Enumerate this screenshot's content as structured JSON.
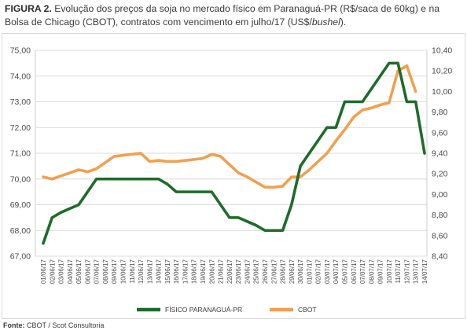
{
  "caption": {
    "label": "FIGURA 2.",
    "text": " Evolução dos preços da soja no mercado físico em Paranaguá-PR (R$/saca de 60kg) e na Bolsa de Chicago (CBOT), contratos com vencimento em julho/17 (US$/",
    "italic": "bushel",
    "end": ")."
  },
  "source": {
    "label": "Fonte:",
    "text": " CBOT / Scot Consultoria"
  },
  "colors": {
    "fisico": "#1e6b2a",
    "cbot": "#f0a050",
    "grid": "#dcdcdc"
  },
  "chart_data": {
    "type": "line",
    "categories": [
      "01/06/17",
      "02/06/17",
      "03/06/17",
      "04/06/17",
      "05/06/17",
      "06/06/17",
      "07/06/17",
      "08/06/17",
      "09/06/17",
      "10/06/17",
      "11/06/17",
      "12/06/17",
      "13/06/17",
      "14/06/17",
      "15/06/17",
      "16/06/17",
      "17/06/17",
      "18/06/17",
      "19/06/17",
      "20/06/17",
      "21/06/17",
      "22/06/17",
      "23/06/17",
      "24/06/17",
      "25/06/17",
      "26/06/17",
      "27/06/17",
      "28/06/17",
      "29/06/17",
      "30/06/17",
      "01/07/17",
      "02/07/17",
      "03/07/17",
      "04/07/17",
      "05/07/17",
      "06/07/17",
      "07/07/17",
      "08/07/17",
      "09/07/17",
      "10/07/17",
      "11/07/17",
      "12/07/17",
      "13/07/17",
      "14/07/17"
    ],
    "y_left": {
      "ylim": [
        67.0,
        75.0
      ],
      "ticks": [
        "67,00",
        "68,00",
        "69,00",
        "70,00",
        "71,00",
        "72,00",
        "73,00",
        "74,00",
        "75,00"
      ]
    },
    "y_right": {
      "ylim": [
        8.4,
        10.4
      ],
      "ticks": [
        "8,40",
        "8,60",
        "8,80",
        "9,00",
        "9,20",
        "9,40",
        "9,60",
        "9,80",
        "10,00",
        "10,20",
        "10,40"
      ]
    },
    "grid": true,
    "legend": "bottom",
    "series": [
      {
        "name": "FÍSICO PARANAGUÁ-PR",
        "axis": "left",
        "values": [
          67.5,
          68.5,
          68.7,
          68.85,
          69.0,
          69.5,
          70.0,
          70.0,
          70.0,
          70.0,
          70.0,
          70.0,
          70.0,
          70.0,
          69.8,
          69.5,
          69.5,
          69.5,
          69.5,
          69.5,
          69.0,
          68.5,
          68.5,
          68.35,
          68.2,
          68.0,
          68.0,
          68.0,
          69.0,
          70.5,
          71.0,
          71.5,
          72.0,
          72.0,
          73.0,
          73.0,
          73.0,
          73.5,
          74.0,
          74.5,
          74.5,
          73.0,
          73.0,
          71.0
        ]
      },
      {
        "name": "CBOT",
        "axis": "right",
        "values": [
          9.17,
          9.15,
          9.18,
          9.21,
          9.24,
          9.22,
          9.25,
          9.31,
          9.37,
          9.38,
          9.39,
          9.4,
          9.32,
          9.33,
          9.32,
          9.32,
          9.33,
          9.34,
          9.35,
          9.39,
          9.37,
          9.29,
          9.21,
          9.17,
          9.12,
          9.07,
          9.07,
          9.08,
          9.17,
          9.17,
          9.24,
          9.32,
          9.4,
          9.52,
          9.63,
          9.75,
          9.82,
          9.84,
          9.87,
          9.89,
          10.2,
          10.25,
          10.0,
          null
        ]
      }
    ]
  }
}
